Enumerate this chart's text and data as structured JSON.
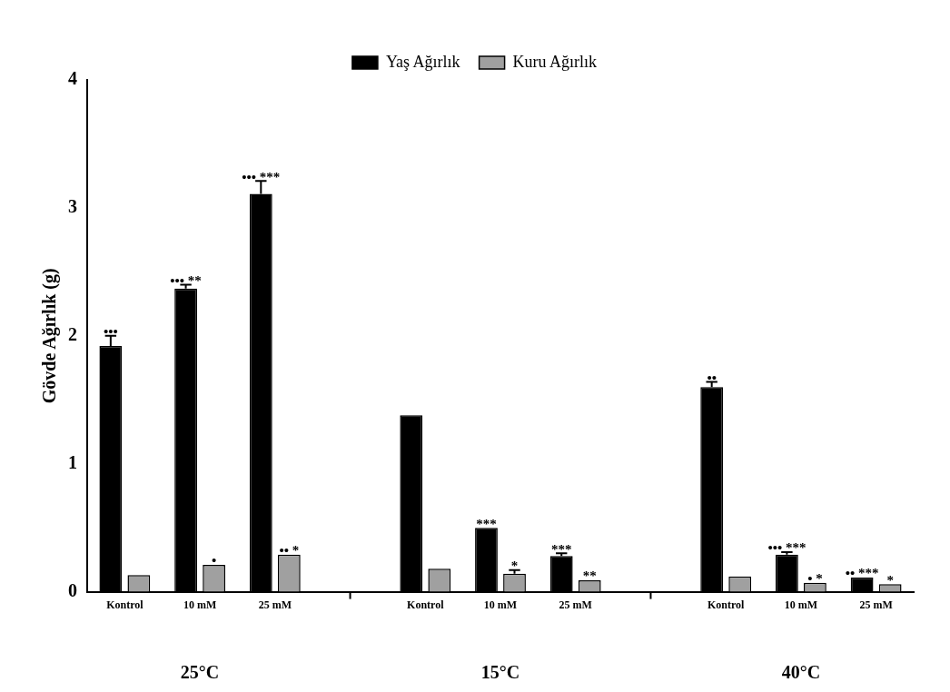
{
  "chart_data": {
    "type": "bar",
    "ylabel": "Gövde Ağırlık (g)",
    "categories": [
      "Kontrol",
      "10 mM",
      "25 mM",
      null,
      "Kontrol",
      "10 mM",
      "25 mM",
      null,
      "Kontrol",
      "10 mM",
      "25 mM"
    ],
    "series": [
      {
        "name": "Yaş Ağırlık",
        "color": "#000000",
        "values": [
          1.92,
          2.37,
          3.11,
          null,
          1.38,
          0.5,
          0.28,
          null,
          1.6,
          0.29,
          0.11
        ],
        "errors": [
          0.08,
          0.03,
          0.1,
          null,
          null,
          null,
          0.02,
          null,
          0.04,
          0.02,
          null
        ],
        "value_labels": [
          "•••",
          "••• **",
          "••• ***",
          null,
          null,
          "***",
          "***",
          null,
          "••",
          "••• ***",
          "•• ***"
        ]
      },
      {
        "name": "Kuru Ağırlık",
        "color": "#a0a0a0",
        "values": [
          0.13,
          0.21,
          0.29,
          null,
          0.18,
          0.14,
          0.09,
          null,
          0.12,
          0.07,
          0.06
        ],
        "errors": [
          null,
          null,
          null,
          null,
          null,
          0.03,
          null,
          null,
          null,
          null,
          null
        ],
        "value_labels": [
          null,
          "•",
          "•• *",
          null,
          null,
          "*",
          "**",
          null,
          null,
          "• *",
          "*"
        ]
      }
    ],
    "ylim": [
      0,
      4
    ],
    "yticks": [
      0,
      1,
      2,
      3,
      4
    ],
    "grid": false,
    "legend": "top",
    "annotations": [
      "25°C",
      "15°C",
      "40°C"
    ]
  }
}
